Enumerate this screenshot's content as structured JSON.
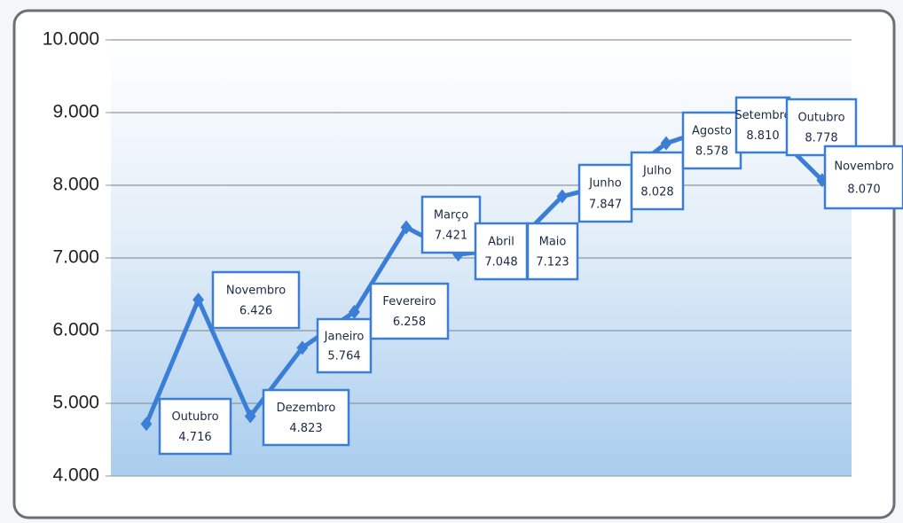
{
  "chart_data": {
    "type": "line",
    "categories": [
      "Outubro",
      "Novembro",
      "Dezembro",
      "Janeiro",
      "Fevereiro",
      "Março",
      "Abril",
      "Maio",
      "Junho",
      "Julho",
      "Agosto",
      "Setembro",
      "Outubro",
      "Novembro"
    ],
    "series": [
      {
        "color": "#3a7fd5",
        "values": [
          4716,
          6426,
          4823,
          5764,
          6258,
          7421,
          7048,
          7123,
          7847,
          8028,
          8578,
          8810,
          8778,
          8070
        ],
        "value_labels": [
          "4.716",
          "6.426",
          "4.823",
          "5.764",
          "6.258",
          "7.421",
          "7.048",
          "7.123",
          "7.847",
          "8.028",
          "8.578",
          "8.810",
          "8.778",
          "8.070"
        ]
      }
    ],
    "ylim": [
      4000,
      10000
    ],
    "yticks": [
      {
        "value": 4000,
        "label": "4.000"
      },
      {
        "value": 5000,
        "label": "5.000"
      },
      {
        "value": 6000,
        "label": "6.000"
      },
      {
        "value": 7000,
        "label": "7.000"
      },
      {
        "value": 8000,
        "label": "8.000"
      },
      {
        "value": 9000,
        "label": "9.000"
      },
      {
        "value": 10000,
        "label": "10.000"
      }
    ],
    "grid": true
  }
}
